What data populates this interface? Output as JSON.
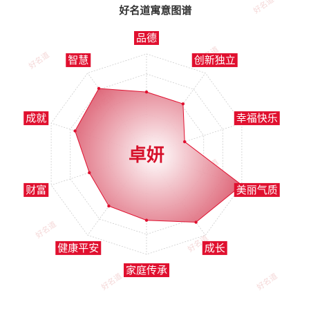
{
  "chart_data": {
    "type": "radar",
    "title": "好名道寓意图谱",
    "center_label": "卓妍",
    "watermark": "好名道",
    "axes": [
      "品德",
      "创新独立",
      "幸福快乐",
      "美丽气质",
      "成长",
      "家庭传承",
      "健康平安",
      "财富",
      "成就",
      "智慧"
    ],
    "values": [
      0.62,
      0.62,
      0.4,
      1.0,
      0.84,
      0.66,
      0.64,
      0.6,
      0.75,
      0.81
    ],
    "range": [
      0,
      1
    ],
    "rings": 5,
    "grid": true
  },
  "colors": {
    "accent": "#e0102f",
    "fill_center": "#ffffff",
    "fill_outer": "#d7465c",
    "grid": "#cccccc",
    "title": "#333333",
    "watermark": "#e8a8a8"
  }
}
